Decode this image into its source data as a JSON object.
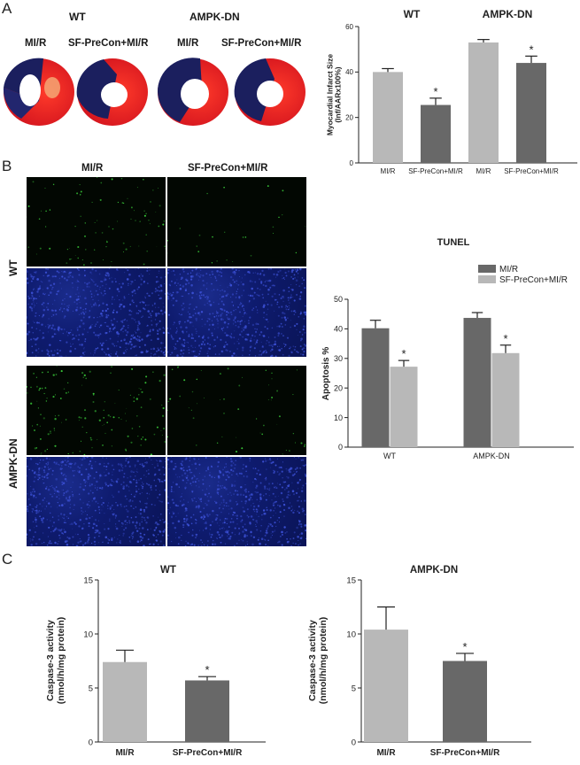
{
  "panels": {
    "A": {
      "label": "A",
      "group_labels": [
        "WT",
        "AMPK-DN"
      ],
      "heart_labels": [
        "MI/R",
        "SF-PreCon+MI/R",
        "MI/R",
        "SF-PreCon+MI/R"
      ]
    },
    "B": {
      "label": "B",
      "col_labels": [
        "MI/R",
        "SF-PreCon+MI/R"
      ],
      "row_labels": [
        "WT",
        "AMPK-DN"
      ]
    },
    "C": {
      "label": "C"
    }
  },
  "colors": {
    "light_bar": "#b8b8b8",
    "dark_bar": "#686868",
    "heart_red": "#e8202a",
    "heart_blue": "#1b1f5e",
    "tunel_green": "#3bd13b",
    "dapi_blue": "#1c2a90"
  },
  "chart_data": [
    {
      "id": "infarct",
      "type": "bar",
      "title": "",
      "group_labels": [
        "WT",
        "AMPK-DN"
      ],
      "categories": [
        "MI/R",
        "SF-PreCon+MI/R",
        "MI/R",
        "SF-PreCon+MI/R"
      ],
      "values": [
        40,
        25.5,
        53,
        44
      ],
      "errors": [
        1.5,
        3,
        1.3,
        3
      ],
      "significance": [
        "",
        "*",
        "",
        "*"
      ],
      "bar_colors": [
        "#b8b8b8",
        "#686868",
        "#b8b8b8",
        "#686868"
      ],
      "ylabel": "Myocardial Infarct Size\n(Inf/AARx100%)",
      "ylim": [
        0,
        60
      ],
      "yticks": [
        "0",
        "20",
        "40",
        "60"
      ]
    },
    {
      "id": "tunel",
      "type": "bar",
      "title": "TUNEL",
      "categories": [
        "WT",
        "AMPK-DN"
      ],
      "series": [
        {
          "name": "MI/R",
          "values": [
            40.2,
            43.7
          ],
          "errors": [
            2.7,
            1.8
          ],
          "color": "#686868"
        },
        {
          "name": "SF-PreCon+MI/R",
          "values": [
            27.2,
            31.8
          ],
          "errors": [
            2.1,
            2.7
          ],
          "color": "#b8b8b8"
        }
      ],
      "significance": [
        [
          "",
          "*"
        ],
        [
          "",
          "*"
        ]
      ],
      "ylabel": "Apoptosis %",
      "ylim": [
        0,
        50
      ],
      "yticks": [
        "0",
        "10",
        "20",
        "30",
        "40",
        "50"
      ],
      "legend": "top-right"
    },
    {
      "id": "casp_wt",
      "type": "bar",
      "title": "WT",
      "categories": [
        "MI/R",
        "SF-PreCon+MI/R"
      ],
      "values": [
        7.4,
        5.7
      ],
      "errors": [
        1.1,
        0.35
      ],
      "significance": [
        "",
        "*"
      ],
      "bar_colors": [
        "#b8b8b8",
        "#686868"
      ],
      "ylabel": "Caspase-3 activity\n(nmol/h/mg protein)",
      "ylim": [
        0,
        15
      ],
      "yticks": [
        "0",
        "5",
        "10",
        "15"
      ]
    },
    {
      "id": "casp_ampk",
      "type": "bar",
      "title": "AMPK-DN",
      "categories": [
        "MI/R",
        "SF-PreCon+MI/R"
      ],
      "values": [
        10.4,
        7.5
      ],
      "errors": [
        2.1,
        0.7
      ],
      "significance": [
        "",
        "*"
      ],
      "bar_colors": [
        "#b8b8b8",
        "#686868"
      ],
      "ylabel": "Caspase-3 activity\n(nmol/h/mg protein)",
      "ylim": [
        0,
        15
      ],
      "yticks": [
        "0",
        "5",
        "10",
        "15"
      ]
    }
  ]
}
